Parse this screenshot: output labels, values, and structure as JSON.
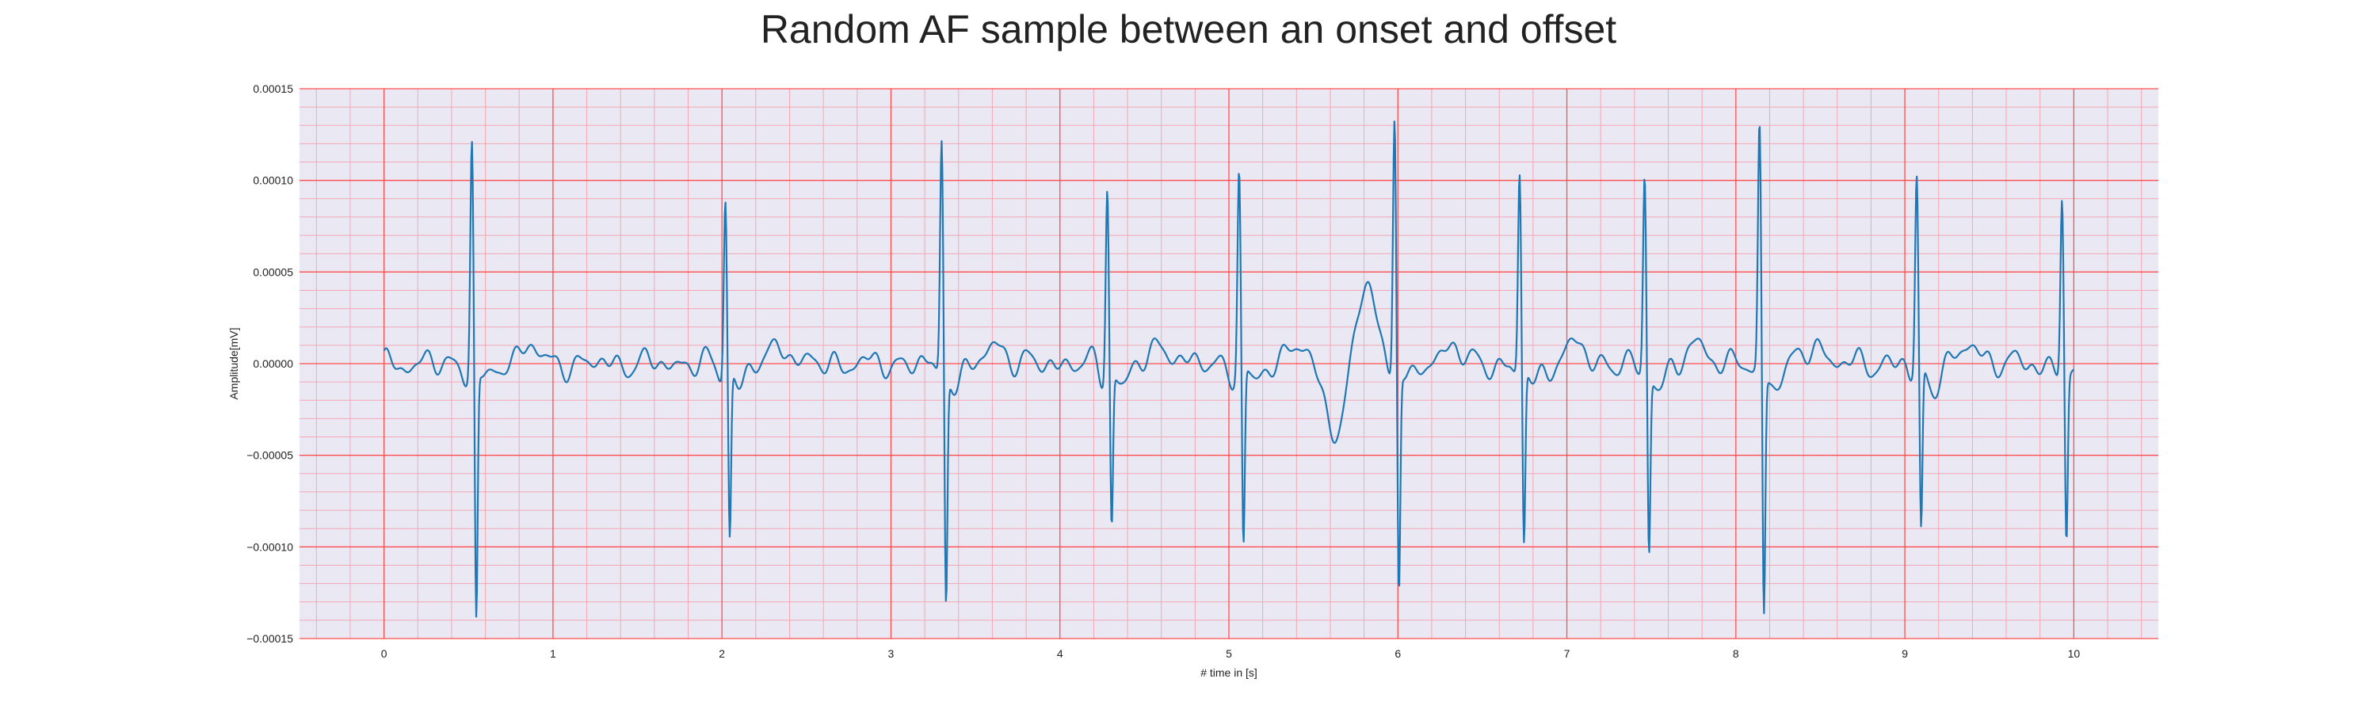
{
  "chart_data": {
    "type": "line",
    "title": "Random AF sample between an onset and offset",
    "xlabel": "# time in [s]",
    "ylabel": "Amplitude[mV]",
    "xlim": [
      -0.5,
      10.5
    ],
    "ylim": [
      -0.00015,
      0.00015
    ],
    "xticks": [
      0,
      1,
      2,
      3,
      4,
      5,
      6,
      7,
      8,
      9,
      10
    ],
    "xtick_labels": [
      "0",
      "1",
      "2",
      "3",
      "4",
      "5",
      "6",
      "7",
      "8",
      "9",
      "10"
    ],
    "yticks": [
      -0.00015,
      -0.0001,
      -5e-05,
      0,
      5e-05,
      0.0001,
      0.00015
    ],
    "ytick_labels": [
      "−0.00015",
      "−0.00010",
      "−0.00005",
      "0.00000",
      "0.00005",
      "0.00010",
      "0.00015"
    ],
    "grid": true,
    "minor_grid": true,
    "colors": {
      "line": "#1f77b4",
      "grid_major": "#ff4d4d",
      "grid_minor": "#f4a6b4",
      "background": "#eae9f3"
    },
    "x_range": [
      0,
      10
    ],
    "beats": [
      {
        "t": 0.52,
        "peak": 0.000125,
        "trough": -0.000137
      },
      {
        "t": 2.02,
        "peak": 9.6e-05,
        "trough": -9.2e-05
      },
      {
        "t": 3.3,
        "peak": 0.000126,
        "trough": -0.000126
      },
      {
        "t": 4.28,
        "peak": 0.000101,
        "trough": -8.6e-05
      },
      {
        "t": 5.06,
        "peak": 0.000107,
        "trough": -0.0001
      },
      {
        "t": 5.98,
        "peak": 0.000138,
        "trough": -0.000121
      },
      {
        "t": 6.72,
        "peak": 0.000107,
        "trough": -9.6e-05
      },
      {
        "t": 7.46,
        "peak": 0.000104,
        "trough": -9.9e-05
      },
      {
        "t": 8.14,
        "peak": 0.000132,
        "trough": -0.000133
      },
      {
        "t": 9.07,
        "peak": 0.000103,
        "trough": -9.2e-05
      },
      {
        "t": 9.93,
        "peak": 9.5e-05,
        "trough": -9.2e-05
      }
    ],
    "waves": [
      {
        "t": 5.8,
        "amplitude": 4.5e-05
      },
      {
        "t": 5.65,
        "amplitude": -4e-05
      }
    ]
  }
}
